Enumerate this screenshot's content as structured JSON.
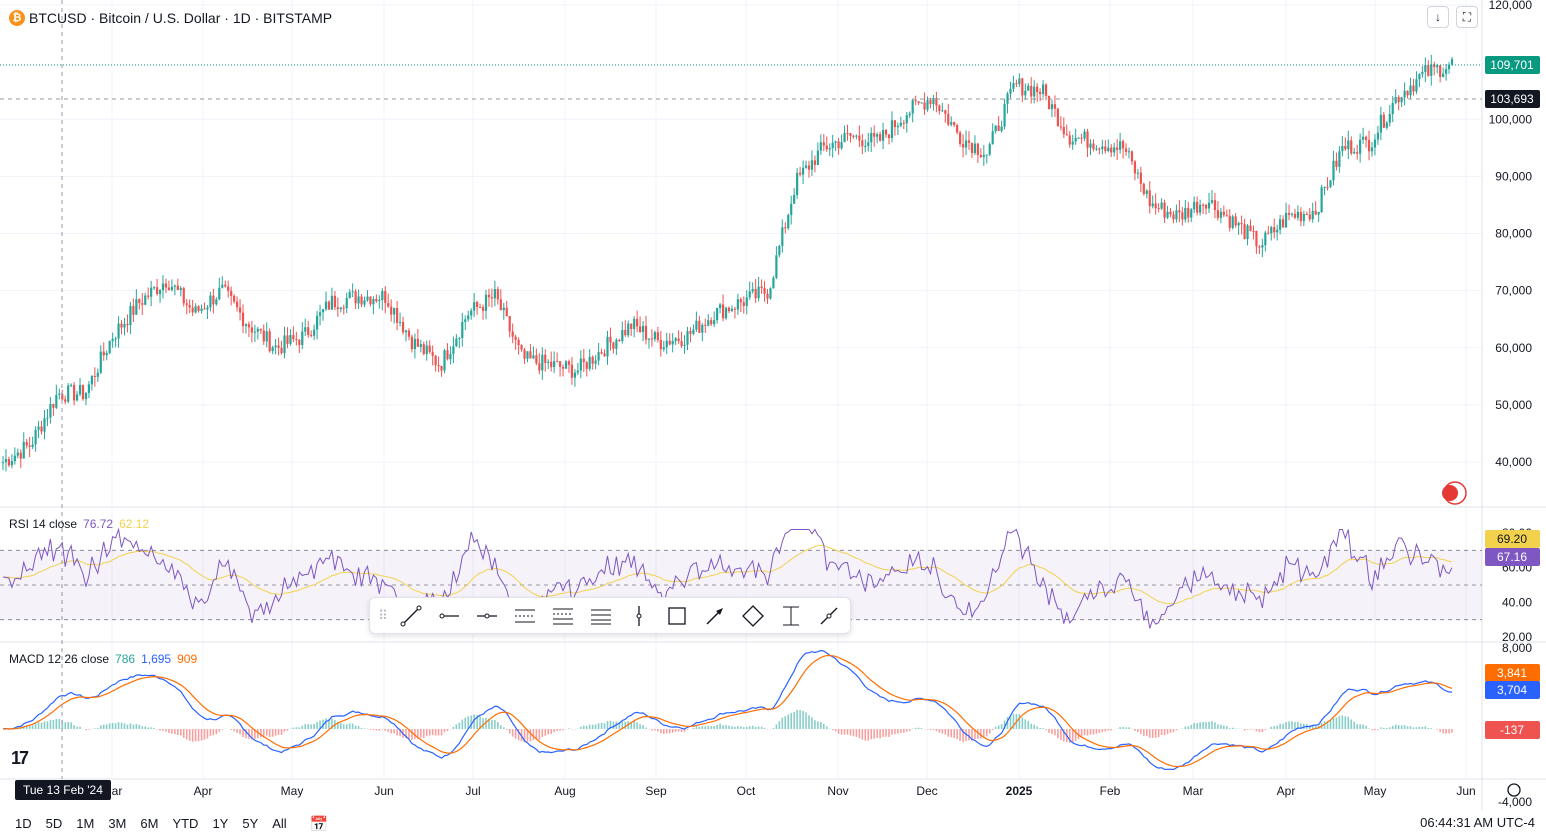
{
  "header": {
    "coin_symbol": "₿",
    "title": "BTCUSD · Bitcoin / U.S. Dollar · 1D · BITSTAMP"
  },
  "top_buttons": {
    "download_icon": "↓",
    "fullscreen_icon": "⛶"
  },
  "price_axis": {
    "ticks": [
      "120,000",
      "100,000",
      "90,000",
      "80,000",
      "70,000",
      "60,000",
      "50,000",
      "40,000"
    ],
    "last_price_label": "109,701",
    "crosshair_price_label": "103,693"
  },
  "rsi": {
    "title": "RSI 14 close",
    "value_rsi": "76.72",
    "value_ma": "62.12",
    "ticks": [
      "80.00",
      "60.00",
      "40.00",
      "20.00"
    ],
    "badge_ma": "69.20",
    "badge_rsi": "67.16"
  },
  "macd": {
    "title": "MACD 12 26 close",
    "value_hist": "786",
    "value_macd": "1,695",
    "value_signal": "909",
    "ticks": [
      "8,000",
      "-4,000"
    ],
    "badge_signal": "3,841",
    "badge_macd": "3,704",
    "badge_hist": "-137"
  },
  "time_axis": {
    "labels": [
      "Mar",
      "Apr",
      "May",
      "Jun",
      "Jul",
      "Aug",
      "Sep",
      "Oct",
      "Nov",
      "Dec",
      "2025",
      "Feb",
      "Mar",
      "Apr",
      "May",
      "Jun"
    ],
    "crosshair_date": "Tue 13 Feb '24"
  },
  "logo_text": "17",
  "bottom_bar": {
    "timeframes": [
      "1D",
      "5D",
      "1M",
      "3M",
      "6M",
      "YTD",
      "1Y",
      "5Y",
      "All"
    ],
    "calendar_icon": "📅",
    "clock": "06:44:31 AM UTC-4"
  },
  "colors": {
    "up": "#26a69a",
    "down": "#ef5350",
    "rsi_line": "#7e57c2",
    "rsi_ma": "#f2d24d",
    "macd_line": "#2962ff",
    "signal_line": "#ff6d00",
    "last_price_bg": "#089981",
    "crosshair_bg": "#131722"
  },
  "chart_data": {
    "type": "candlestick",
    "symbol": "BTCUSD",
    "interval": "1D",
    "ylim": [
      35000,
      120000
    ],
    "x": [
      "2024-02",
      "2024-03",
      "2024-04",
      "2024-05",
      "2024-06",
      "2024-07",
      "2024-08",
      "2024-09",
      "2024-10",
      "2024-11",
      "2024-12",
      "2025-01",
      "2025-02",
      "2025-03",
      "2025-04",
      "2025-05",
      "2025-06"
    ],
    "close_path": [
      40000,
      43000,
      52000,
      52000,
      62000,
      68000,
      72000,
      66000,
      70000,
      64000,
      60000,
      62000,
      68000,
      69000,
      69000,
      61000,
      57000,
      66000,
      69000,
      58000,
      57000,
      56000,
      60000,
      64000,
      61000,
      62000,
      66000,
      68000,
      70000,
      89000,
      95000,
      97000,
      96000,
      101000,
      104000,
      97000,
      94000,
      106000,
      105000,
      97000,
      96000,
      95000,
      85000,
      83000,
      86000,
      82000,
      78000,
      83000,
      84000,
      95000,
      96000,
      104000,
      108000,
      109701
    ]
  },
  "toolbar": {
    "grip": "⠿",
    "tools": [
      "trend-line",
      "horizontal-ray",
      "horizontal-line",
      "parallel-channel",
      "fib-retracement",
      "horizontal-lines",
      "vertical-line",
      "rectangle",
      "arrow",
      "polygon",
      "price-range",
      "measure"
    ]
  }
}
